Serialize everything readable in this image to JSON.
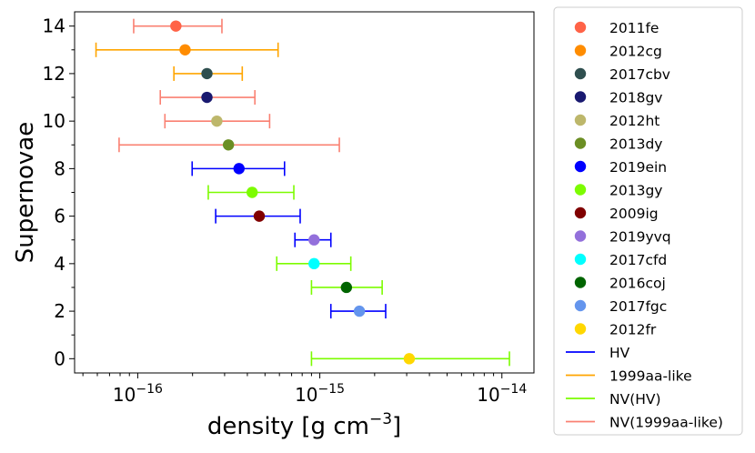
{
  "chart_data": {
    "type": "scatter",
    "title": "",
    "xlabel": "density [g cm",
    "xlabel_exponent": "−3",
    "xlabel_close": "]",
    "ylabel": "Supernovae",
    "xscale": "log",
    "xlim": [
      4.5e-17,
      1.5e-14
    ],
    "ylim": [
      -0.6,
      14.6
    ],
    "grid": false,
    "legend_position": "outside-right",
    "x_ticks": [
      {
        "value": 1e-16,
        "base": "10",
        "exp": "−16"
      },
      {
        "value": 1e-15,
        "base": "10",
        "exp": "−15"
      },
      {
        "value": 1e-14,
        "base": "10",
        "exp": "−14"
      }
    ],
    "y_ticks": [
      "0",
      "2",
      "4",
      "6",
      "8",
      "10",
      "12",
      "14"
    ],
    "error_bar_styles": [
      {
        "name": "HV",
        "color": "#0000ff"
      },
      {
        "name": "1999aa-like",
        "color": "#ffa500"
      },
      {
        "name": "NV(HV)",
        "color": "#7cfc00"
      },
      {
        "name": "NV(1999aa-like)",
        "color": "#fa8072"
      }
    ],
    "points": [
      {
        "name": "2011fe",
        "y": 14,
        "x": 1.62e-16,
        "xmin": 9.5e-17,
        "xmax": 2.9e-16,
        "marker_color": "#ff6347",
        "bar_style": "NV(1999aa-like)"
      },
      {
        "name": "2012cg",
        "y": 13,
        "x": 1.82e-16,
        "xmin": 5.9e-17,
        "xmax": 5.9e-16,
        "marker_color": "#ff8c00",
        "bar_style": "1999aa-like"
      },
      {
        "name": "2017cbv",
        "y": 12,
        "x": 2.4e-16,
        "xmin": 1.58e-16,
        "xmax": 3.75e-16,
        "marker_color": "#2f4f4f",
        "bar_style": "1999aa-like"
      },
      {
        "name": "2018gv",
        "y": 11,
        "x": 2.4e-16,
        "xmin": 1.33e-16,
        "xmax": 4.4e-16,
        "marker_color": "#191970",
        "bar_style": "NV(1999aa-like)"
      },
      {
        "name": "2012ht",
        "y": 10,
        "x": 2.72e-16,
        "xmin": 1.41e-16,
        "xmax": 5.3e-16,
        "marker_color": "#bdb76b",
        "bar_style": "NV(1999aa-like)"
      },
      {
        "name": "2013dy",
        "y": 9,
        "x": 3.15e-16,
        "xmin": 7.9e-17,
        "xmax": 1.28e-15,
        "marker_color": "#6b8e23",
        "bar_style": "NV(1999aa-like)"
      },
      {
        "name": "2019ein",
        "y": 8,
        "x": 3.6e-16,
        "xmin": 1.99e-16,
        "xmax": 6.4e-16,
        "marker_color": "#0000ff",
        "bar_style": "HV"
      },
      {
        "name": "2013gy",
        "y": 7,
        "x": 4.25e-16,
        "xmin": 2.44e-16,
        "xmax": 7.2e-16,
        "marker_color": "#7cfc00",
        "bar_style": "NV(HV)"
      },
      {
        "name": "2009ig",
        "y": 6,
        "x": 4.65e-16,
        "xmin": 2.68e-16,
        "xmax": 7.8e-16,
        "marker_color": "#800000",
        "bar_style": "HV"
      },
      {
        "name": "2019yvq",
        "y": 5,
        "x": 9.3e-16,
        "xmin": 7.3e-16,
        "xmax": 1.15e-15,
        "marker_color": "#9370db",
        "bar_style": "HV"
      },
      {
        "name": "2017cfd",
        "y": 4,
        "x": 9.3e-16,
        "xmin": 5.8e-16,
        "xmax": 1.48e-15,
        "marker_color": "#00ffff",
        "bar_style": "NV(HV)"
      },
      {
        "name": "2016coj",
        "y": 3,
        "x": 1.4e-15,
        "xmin": 9e-16,
        "xmax": 2.2e-15,
        "marker_color": "#006400",
        "bar_style": "NV(HV)"
      },
      {
        "name": "2017fgc",
        "y": 2,
        "x": 1.65e-15,
        "xmin": 1.15e-15,
        "xmax": 2.3e-15,
        "marker_color": "#6495ed",
        "bar_style": "HV"
      },
      {
        "name": "2012fr",
        "y": 0,
        "x": 3.1e-15,
        "xmin": 9e-16,
        "xmax": 1.1e-14,
        "marker_color": "#ffd700",
        "bar_style": "NV(HV)"
      }
    ]
  }
}
